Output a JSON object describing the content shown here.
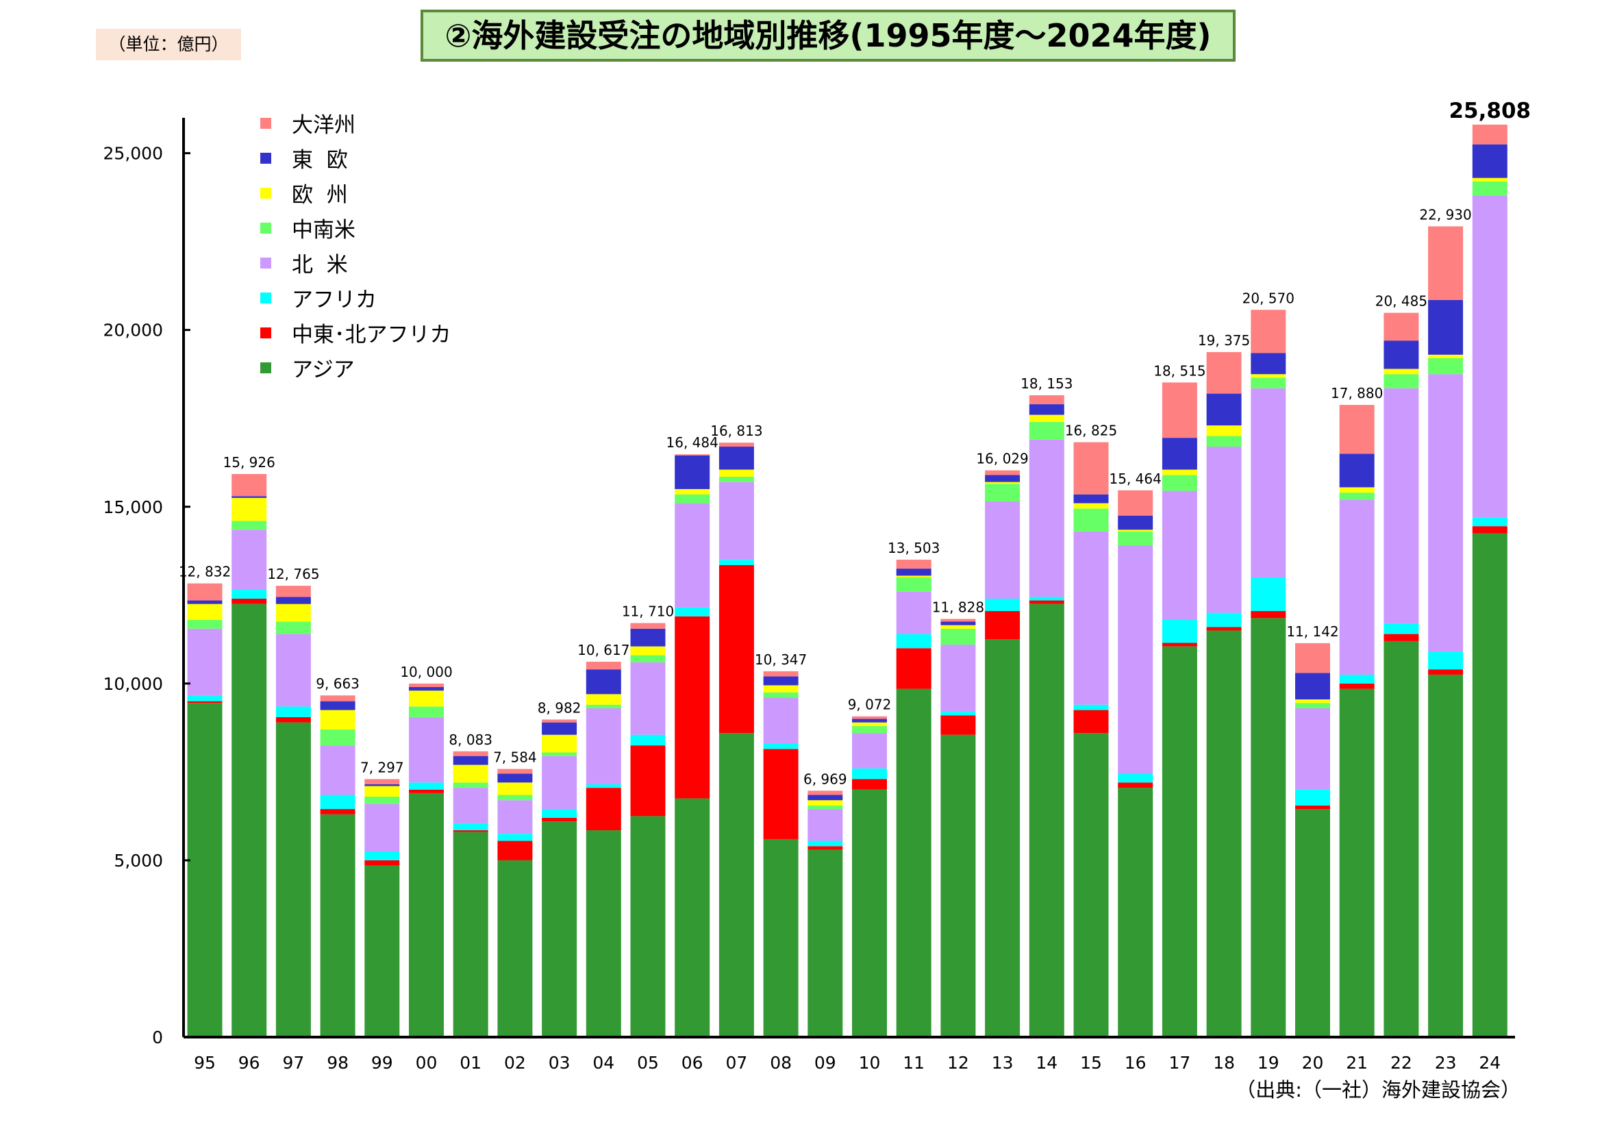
{
  "title": "②海外建設受注の地域別推移(1995年度～2024年度)",
  "unit": "（単位：億円）",
  "source": "（出典:（一社）海外建設協会）",
  "chart_data": {
    "type": "bar",
    "stacked": true,
    "title": "②海外建設受注の地域別推移(1995年度～2024年度)",
    "xlabel": "",
    "ylabel": "",
    "ylim": [
      0,
      26000
    ],
    "yticks": [
      0,
      5000,
      10000,
      15000,
      20000,
      25000
    ],
    "ytick_labels": [
      "0",
      "5,000",
      "10,000",
      "15,000",
      "20,000",
      "25,000"
    ],
    "grid": false,
    "legend_position": "top-left",
    "categories": [
      "95",
      "96",
      "97",
      "98",
      "99",
      "00",
      "01",
      "02",
      "03",
      "04",
      "05",
      "06",
      "07",
      "08",
      "09",
      "10",
      "11",
      "12",
      "13",
      "14",
      "15",
      "16",
      "17",
      "18",
      "19",
      "20",
      "21",
      "22",
      "23",
      "24"
    ],
    "totals": [
      12832,
      15926,
      12765,
      9663,
      7297,
      10000,
      8083,
      7584,
      8982,
      10617,
      11710,
      16484,
      16813,
      10347,
      6969,
      9072,
      13503,
      11828,
      16029,
      18153,
      16825,
      15464,
      18515,
      19375,
      20570,
      11142,
      17880,
      20485,
      22930,
      25808
    ],
    "total_labels": [
      "12, 832",
      "15, 926",
      "12, 765",
      "9, 663",
      "7, 297",
      "10, 000",
      "8, 083",
      "7, 584",
      "8, 982",
      "10, 617",
      "11, 710",
      "16, 484",
      "16, 813",
      "10, 347",
      "6, 969",
      "9, 072",
      "13, 503",
      "11, 828",
      "16, 029",
      "18, 153",
      "16, 825",
      "15, 464",
      "18, 515",
      "19, 375",
      "20, 570",
      "11, 142",
      "17, 880",
      "20, 485",
      "22, 930",
      "25,808"
    ],
    "series": [
      {
        "name": "アジア",
        "color": "#339933",
        "values": [
          9450,
          12250,
          8900,
          6300,
          4850,
          6900,
          5800,
          5000,
          6100,
          5850,
          6250,
          6750,
          8600,
          5600,
          5300,
          7000,
          9850,
          8550,
          11250,
          12250,
          8600,
          7050,
          11050,
          11500,
          11850,
          6450,
          9850,
          11200,
          10250,
          14250
        ]
      },
      {
        "name": "中東･北アフリカ",
        "color": "#ff0000",
        "values": [
          50,
          150,
          150,
          150,
          150,
          100,
          50,
          550,
          100,
          1200,
          2000,
          5150,
          4750,
          2550,
          100,
          300,
          1150,
          550,
          800,
          100,
          650,
          150,
          100,
          100,
          200,
          100,
          150,
          200,
          150,
          200
        ]
      },
      {
        "name": "アフリカ",
        "color": "#00ffff",
        "values": [
          150,
          250,
          300,
          400,
          250,
          200,
          200,
          200,
          250,
          100,
          300,
          250,
          150,
          150,
          150,
          300,
          400,
          100,
          350,
          100,
          150,
          250,
          650,
          400,
          950,
          450,
          250,
          300,
          500,
          250
        ]
      },
      {
        "name": "北  米",
        "color": "#cc99ff",
        "values": [
          1900,
          1700,
          2050,
          1400,
          1350,
          1850,
          1000,
          950,
          1500,
          2150,
          2050,
          2950,
          2200,
          1300,
          900,
          1000,
          1200,
          1900,
          2750,
          4450,
          4900,
          6450,
          3650,
          4700,
          5350,
          2300,
          4950,
          6650,
          7850,
          9100
        ]
      },
      {
        "name": "中南米",
        "color": "#66ff66",
        "values": [
          250,
          250,
          350,
          450,
          200,
          300,
          150,
          150,
          100,
          100,
          200,
          250,
          150,
          150,
          100,
          200,
          400,
          450,
          500,
          500,
          650,
          400,
          450,
          300,
          300,
          150,
          200,
          400,
          450,
          400
        ]
      },
      {
        "name": "欧  州",
        "color": "#ffff00",
        "values": [
          450,
          650,
          500,
          550,
          300,
          450,
          500,
          350,
          500,
          300,
          250,
          150,
          200,
          200,
          150,
          100,
          50,
          100,
          50,
          200,
          150,
          50,
          150,
          300,
          100,
          100,
          150,
          150,
          100,
          100
        ]
      },
      {
        "name": "東  欧",
        "color": "#3333cc",
        "values": [
          100,
          50,
          200,
          250,
          50,
          100,
          250,
          250,
          350,
          700,
          500,
          950,
          650,
          250,
          150,
          100,
          200,
          100,
          200,
          300,
          250,
          400,
          900,
          900,
          600,
          750,
          950,
          800,
          1550,
          950
        ]
      },
      {
        "name": "大洋州",
        "color": "#ff8080",
        "values": [
          482,
          626,
          315,
          163,
          147,
          100,
          133,
          134,
          82,
          217,
          160,
          34,
          113,
          147,
          119,
          72,
          253,
          78,
          129,
          253,
          1475,
          714,
          1565,
          1175,
          1220,
          842,
          1380,
          785,
          2080,
          558
        ]
      }
    ]
  }
}
